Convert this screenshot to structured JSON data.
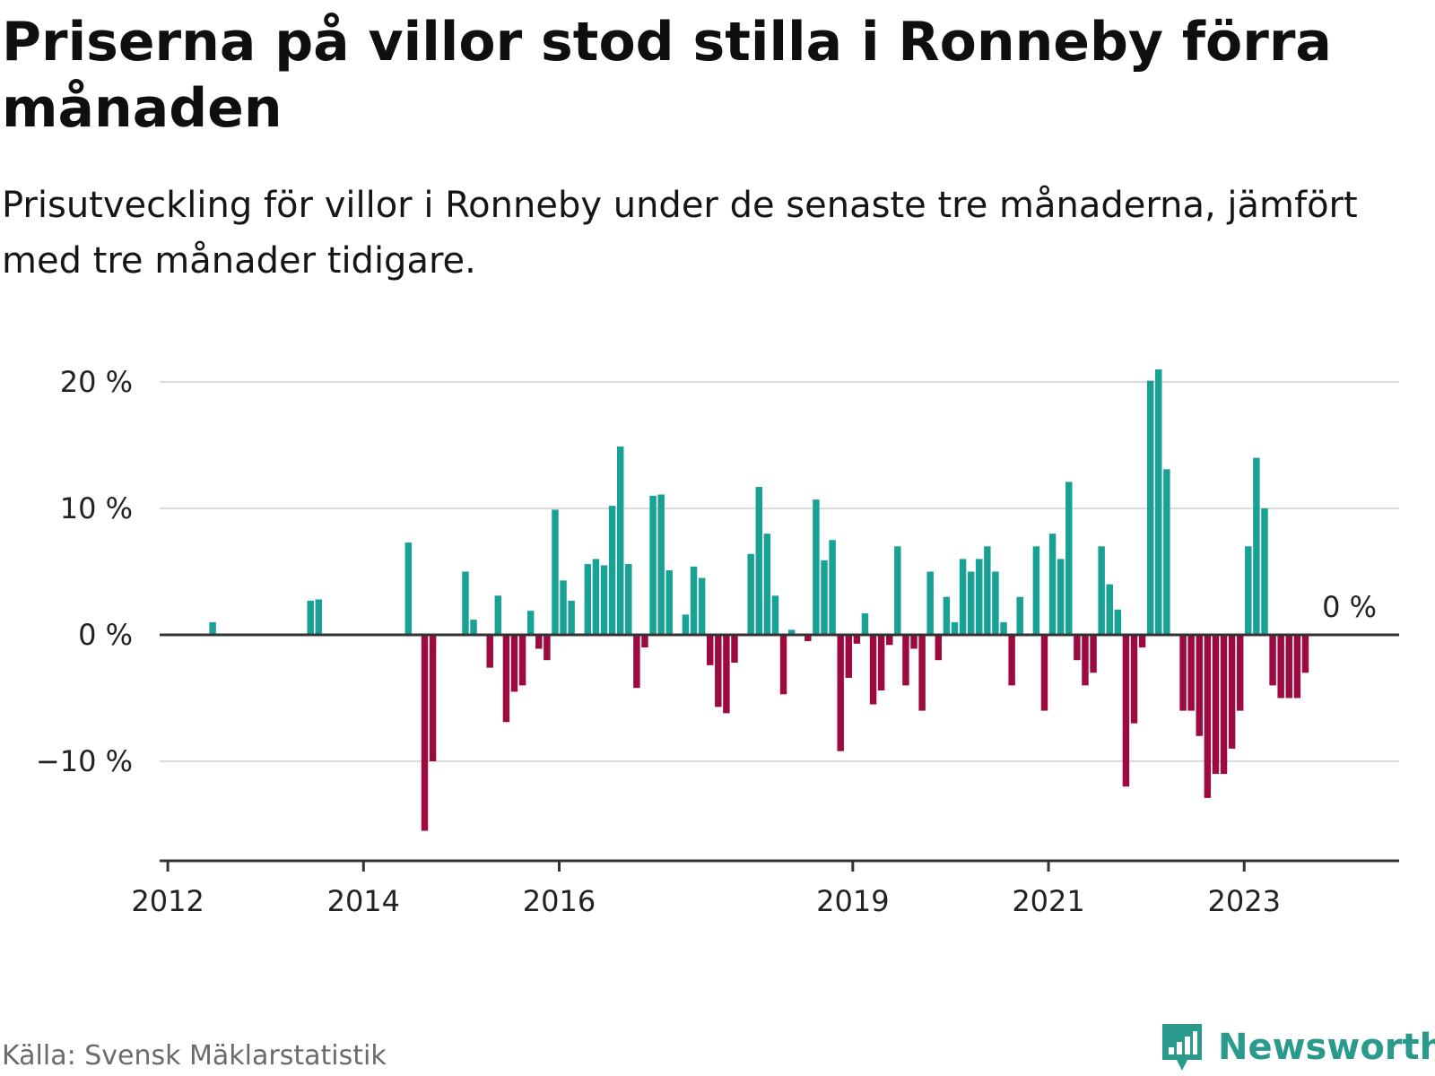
{
  "title": "Priserna på villor stod stilla i Ronneby förra månaden",
  "subtitle": "Prisutveckling för villor i Ronneby under de senaste tre månaderna, jämfört med tre månader tidigare.",
  "source": "Källa: Svensk Mäklarstatistik",
  "brand": {
    "name": "Newsworthy",
    "icon": "newsworthy-logo-icon"
  },
  "colors": {
    "positive": "#17a295",
    "negative": "#9c0a3f",
    "grid": "#dcdcdc",
    "axis": "#333333"
  },
  "chart_data": {
    "type": "bar",
    "ylim": [
      -18,
      21
    ],
    "y_ticks": [
      {
        "value": 20,
        "label": "20 %"
      },
      {
        "value": 10,
        "label": "10 %"
      },
      {
        "value": 0,
        "label": "0 %"
      },
      {
        "value": -10,
        "label": "−10 %"
      }
    ],
    "x_ticks": [
      {
        "date": "2012-01",
        "label": "2012"
      },
      {
        "date": "2014-01",
        "label": "2014"
      },
      {
        "date": "2016-01",
        "label": "2016"
      },
      {
        "date": "2019-01",
        "label": "2019"
      },
      {
        "date": "2021-01",
        "label": "2021"
      },
      {
        "date": "2023-01",
        "label": "2023"
      }
    ],
    "grid": true,
    "last_value_label": "0 %",
    "series": [
      {
        "values": [
          [
            "2012-06",
            1.0
          ],
          [
            "2013-06",
            2.7
          ],
          [
            "2013-07",
            2.8
          ],
          [
            "2014-06",
            7.3
          ],
          [
            "2014-08",
            -15.5
          ],
          [
            "2014-09",
            -10.0
          ],
          [
            "2015-01",
            5.0
          ],
          [
            "2015-02",
            1.2
          ],
          [
            "2015-04",
            -2.6
          ],
          [
            "2015-05",
            3.1
          ],
          [
            "2015-06",
            -6.9
          ],
          [
            "2015-07",
            -4.5
          ],
          [
            "2015-08",
            -4.0
          ],
          [
            "2015-09",
            1.9
          ],
          [
            "2015-10",
            -1.1
          ],
          [
            "2015-11",
            -2.0
          ],
          [
            "2015-12",
            9.9
          ],
          [
            "2016-01",
            4.3
          ],
          [
            "2016-02",
            2.7
          ],
          [
            "2016-04",
            5.6
          ],
          [
            "2016-05",
            6.0
          ],
          [
            "2016-06",
            5.5
          ],
          [
            "2016-07",
            10.2
          ],
          [
            "2016-08",
            14.9
          ],
          [
            "2016-09",
            5.6
          ],
          [
            "2016-10",
            -4.2
          ],
          [
            "2016-11",
            -1.0
          ],
          [
            "2016-12",
            11.0
          ],
          [
            "2017-01",
            11.1
          ],
          [
            "2017-02",
            5.1
          ],
          [
            "2017-04",
            1.6
          ],
          [
            "2017-05",
            5.4
          ],
          [
            "2017-06",
            4.5
          ],
          [
            "2017-07",
            -2.4
          ],
          [
            "2017-08",
            -5.7
          ],
          [
            "2017-09",
            -6.2
          ],
          [
            "2017-10",
            -2.2
          ],
          [
            "2017-12",
            6.4
          ],
          [
            "2018-01",
            11.7
          ],
          [
            "2018-02",
            8.0
          ],
          [
            "2018-03",
            3.1
          ],
          [
            "2018-04",
            -4.7
          ],
          [
            "2018-05",
            0.4
          ],
          [
            "2018-07",
            -0.5
          ],
          [
            "2018-08",
            10.7
          ],
          [
            "2018-09",
            5.9
          ],
          [
            "2018-10",
            7.5
          ],
          [
            "2018-11",
            -9.2
          ],
          [
            "2018-12",
            -3.4
          ],
          [
            "2019-01",
            -0.7
          ],
          [
            "2019-02",
            1.7
          ],
          [
            "2019-03",
            -5.5
          ],
          [
            "2019-04",
            -4.4
          ],
          [
            "2019-05",
            -0.8
          ],
          [
            "2019-06",
            7.0
          ],
          [
            "2019-07",
            -4.0
          ],
          [
            "2019-08",
            -1.1
          ],
          [
            "2019-09",
            -6.0
          ],
          [
            "2019-10",
            5.0
          ],
          [
            "2019-11",
            -2.0
          ],
          [
            "2019-12",
            3.0
          ],
          [
            "2020-01",
            1.0
          ],
          [
            "2020-02",
            6.0
          ],
          [
            "2020-03",
            5.0
          ],
          [
            "2020-04",
            6.0
          ],
          [
            "2020-05",
            7.0
          ],
          [
            "2020-06",
            5.0
          ],
          [
            "2020-07",
            1.0
          ],
          [
            "2020-08",
            -4.0
          ],
          [
            "2020-09",
            3.0
          ],
          [
            "2020-11",
            7.0
          ],
          [
            "2020-12",
            -6.0
          ],
          [
            "2021-01",
            8.0
          ],
          [
            "2021-02",
            6.0
          ],
          [
            "2021-03",
            12.1
          ],
          [
            "2021-04",
            -2.0
          ],
          [
            "2021-05",
            -4.0
          ],
          [
            "2021-06",
            -3.0
          ],
          [
            "2021-07",
            7.0
          ],
          [
            "2021-08",
            4.0
          ],
          [
            "2021-09",
            2.0
          ],
          [
            "2021-10",
            -12.0
          ],
          [
            "2021-11",
            -7.0
          ],
          [
            "2021-12",
            -1.0
          ],
          [
            "2022-01",
            20.1
          ],
          [
            "2022-02",
            21.0
          ],
          [
            "2022-03",
            13.1
          ],
          [
            "2022-05",
            -6.0
          ],
          [
            "2022-06",
            -6.0
          ],
          [
            "2022-07",
            -8.0
          ],
          [
            "2022-08",
            -12.9
          ],
          [
            "2022-09",
            -11.0
          ],
          [
            "2022-10",
            -11.0
          ],
          [
            "2022-11",
            -9.0
          ],
          [
            "2022-12",
            -6.0
          ],
          [
            "2023-01",
            7.0
          ],
          [
            "2023-02",
            14.0
          ],
          [
            "2023-03",
            10.0
          ],
          [
            "2023-04",
            -4.0
          ],
          [
            "2023-05",
            -5.0
          ],
          [
            "2023-06",
            -5.0
          ],
          [
            "2023-07",
            -5.0
          ],
          [
            "2023-08",
            -3.0
          ],
          [
            "2023-09",
            0.0
          ]
        ]
      }
    ]
  }
}
